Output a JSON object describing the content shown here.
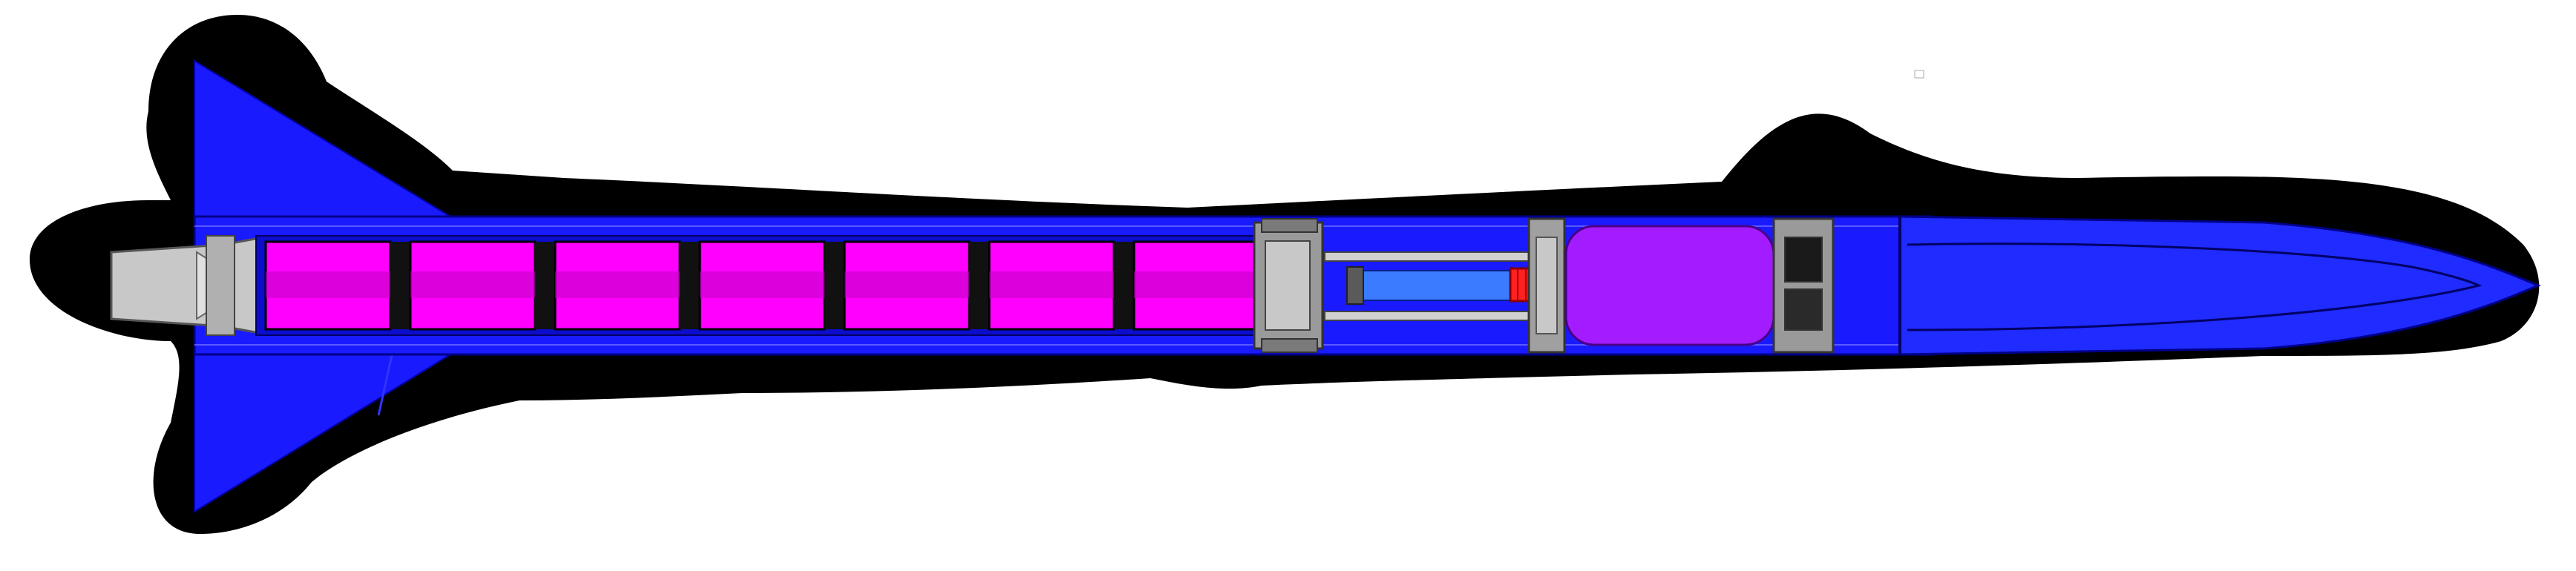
{
  "figure": {
    "kind": "rocket cross-section cutaway",
    "colors": {
      "background": "#ffffff",
      "shadow": "#000000",
      "body_blue": "#1a1aff",
      "body_blue_dark": "#0d0dcc",
      "nose_blue": "#1f2bff",
      "grain_magenta": "#ff00ff",
      "grain_magenta_dark": "#c000c0",
      "tank_purple": "#a21cff",
      "nozzle_gray": "#c8c8c8",
      "metal_gray": "#9a9a9a",
      "injector_red": "#ff2020",
      "outline": "#000000"
    },
    "components": {
      "fins": "rear-fin",
      "nozzle": "nozzle",
      "grains": "propellant-grain",
      "bulkhead": "bulkhead",
      "plumbing": "feed-rod",
      "valve": "injector-valve",
      "tank": "oxidizer-tank",
      "coupler": "coupler",
      "nose": "nose-cone"
    }
  }
}
